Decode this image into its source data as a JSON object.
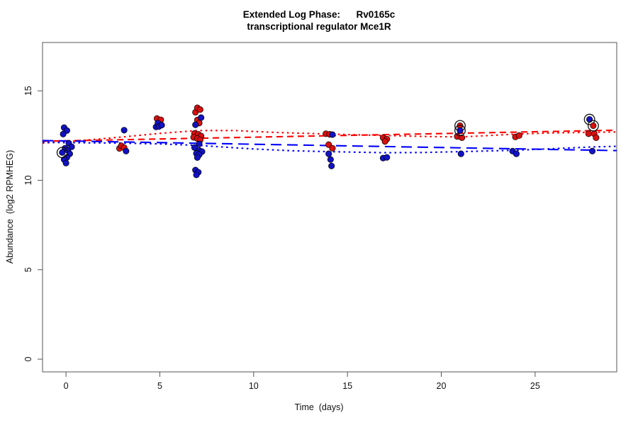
{
  "title": {
    "line1": "Extended Log Phase:      Rv0165c",
    "line2": "transcriptional regulator Mce1R"
  },
  "chart_data": {
    "type": "scatter",
    "title": "Extended Log Phase: Rv0165c transcriptional regulator Mce1R",
    "xlabel": "Time  (days)",
    "ylabel": "Abundance  (log2 RPMHEG)",
    "xlim": [
      -1.25,
      29.35
    ],
    "ylim": [
      -0.71,
      17.7
    ],
    "xticks": [
      0,
      5,
      10,
      15,
      20,
      25
    ],
    "yticks": [
      0,
      5,
      10,
      15
    ],
    "grid": false,
    "legend": "none",
    "colors": {
      "red_point": "#d81010",
      "blue_point": "#1212c4",
      "red_line": "#ff0000",
      "blue_line": "#0000ff",
      "point_outline": "#000000",
      "highlight_ring": "#111111",
      "axis": "#555555"
    },
    "series": [
      {
        "name": "red",
        "color": "#d81010",
        "points": [
          [
            2.85,
            11.78
          ],
          [
            2.95,
            11.93
          ],
          [
            3.1,
            11.82
          ],
          [
            4.85,
            13.45
          ],
          [
            5.05,
            13.38
          ],
          [
            6.9,
            13.8
          ],
          [
            7.0,
            14.05
          ],
          [
            7.15,
            13.95
          ],
          [
            7.0,
            13.37
          ],
          [
            7.1,
            13.2
          ],
          [
            6.85,
            12.62
          ],
          [
            7.05,
            12.57
          ],
          [
            7.2,
            12.47
          ],
          [
            6.8,
            12.4
          ],
          [
            7.0,
            12.33
          ],
          [
            7.15,
            12.25
          ],
          [
            13.85,
            12.6
          ],
          [
            14.05,
            12.57
          ],
          [
            14.0,
            11.99
          ],
          [
            14.2,
            11.79
          ],
          [
            16.9,
            12.38
          ],
          [
            17.1,
            12.3
          ],
          [
            17.0,
            12.17
          ],
          [
            20.85,
            12.45
          ],
          [
            21.1,
            12.38
          ],
          [
            23.95,
            12.42
          ],
          [
            24.15,
            12.5
          ],
          [
            27.85,
            12.6
          ],
          [
            28.15,
            12.6
          ],
          [
            28.25,
            12.38
          ]
        ]
      },
      {
        "name": "blue",
        "color": "#1212c4",
        "points": [
          [
            -0.1,
            12.94
          ],
          [
            0.05,
            12.78
          ],
          [
            -0.15,
            12.58
          ],
          [
            0.15,
            12.07
          ],
          [
            0.3,
            11.87
          ],
          [
            -0.05,
            11.79
          ],
          [
            0.1,
            11.67
          ],
          [
            0.2,
            11.48
          ],
          [
            0.05,
            11.28
          ],
          [
            -0.1,
            11.16
          ],
          [
            0.0,
            10.96
          ],
          [
            3.1,
            12.8
          ],
          [
            3.2,
            11.63
          ],
          [
            4.8,
            12.98
          ],
          [
            4.9,
            13.2
          ],
          [
            4.95,
            13.0
          ],
          [
            5.1,
            13.08
          ],
          [
            6.9,
            13.1
          ],
          [
            7.2,
            13.5
          ],
          [
            7.1,
            12.03
          ],
          [
            6.85,
            11.83
          ],
          [
            7.1,
            11.67
          ],
          [
            7.25,
            11.6
          ],
          [
            6.95,
            11.5
          ],
          [
            7.1,
            11.43
          ],
          [
            7.0,
            11.27
          ],
          [
            6.9,
            10.57
          ],
          [
            7.05,
            10.45
          ],
          [
            6.95,
            10.3
          ],
          [
            14.2,
            12.55
          ],
          [
            14.0,
            11.48
          ],
          [
            14.1,
            11.16
          ],
          [
            14.15,
            10.8
          ],
          [
            16.9,
            11.24
          ],
          [
            17.1,
            11.28
          ],
          [
            21.05,
            11.48
          ],
          [
            23.8,
            11.63
          ],
          [
            24.0,
            11.48
          ],
          [
            28.05,
            11.63
          ]
        ]
      }
    ],
    "highlighted_points": [
      {
        "series": "blue",
        "x": -0.2,
        "y": 11.55
      },
      {
        "series": "red",
        "x": 21.0,
        "y": 13.05
      },
      {
        "series": "blue",
        "x": 21.0,
        "y": 12.78
      },
      {
        "series": "blue",
        "x": 27.9,
        "y": 13.4
      },
      {
        "series": "red",
        "x": 28.1,
        "y": 13.05
      }
    ],
    "lines": [
      {
        "name": "red-linear-fit",
        "style": "dashed",
        "color": "#ff0000",
        "points": [
          [
            -1.25,
            12.18
          ],
          [
            29.35,
            12.8
          ]
        ]
      },
      {
        "name": "red-smooth-fit",
        "style": "dotted",
        "color": "#ff0000",
        "points": [
          [
            -1.25,
            12.08
          ],
          [
            0,
            12.15
          ],
          [
            3,
            12.42
          ],
          [
            5,
            12.62
          ],
          [
            7,
            12.78
          ],
          [
            9,
            12.78
          ],
          [
            11,
            12.68
          ],
          [
            14,
            12.58
          ],
          [
            17,
            12.5
          ],
          [
            19,
            12.45
          ],
          [
            21,
            12.42
          ],
          [
            24,
            12.58
          ],
          [
            26,
            12.65
          ],
          [
            28,
            12.68
          ],
          [
            29.35,
            12.7
          ]
        ]
      },
      {
        "name": "blue-linear-fit",
        "style": "longdash",
        "color": "#0000ff",
        "points": [
          [
            -1.25,
            12.22
          ],
          [
            29.35,
            11.66
          ]
        ]
      },
      {
        "name": "blue-smooth-fit",
        "style": "dotted",
        "color": "#0000ff",
        "points": [
          [
            -1.25,
            12.12
          ],
          [
            0,
            12.1
          ],
          [
            3,
            12.08
          ],
          [
            5,
            12.03
          ],
          [
            7,
            11.95
          ],
          [
            10,
            11.75
          ],
          [
            12,
            11.65
          ],
          [
            14,
            11.6
          ],
          [
            17,
            11.54
          ],
          [
            19,
            11.55
          ],
          [
            21,
            11.6
          ],
          [
            24,
            11.68
          ],
          [
            26,
            11.77
          ],
          [
            28,
            11.86
          ],
          [
            29.35,
            11.9
          ]
        ]
      }
    ]
  }
}
